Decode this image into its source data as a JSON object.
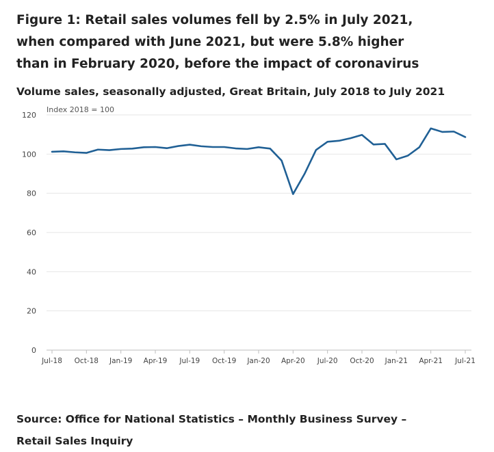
{
  "title": "Figure 1: Retail sales volumes fell by 2.5% in July 2021, when compared with June 2021, but were 5.8% higher than in February 2020, before the impact of coronavirus",
  "subtitle": "Volume sales, seasonally adjusted, Great Britain, July 2018 to July 2021",
  "source": "Source: Office for National Statistics – Monthly Business Survey – Retail Sales Inquiry",
  "colors": {
    "line": "#206095",
    "grid": "#e6e6e6",
    "axis": "#bebebe"
  },
  "chart_data": {
    "type": "line",
    "ylabel": "Index 2018 = 100",
    "ylim": [
      0,
      120
    ],
    "yticks": [
      0,
      20,
      40,
      60,
      80,
      100,
      120
    ],
    "x": [
      "Jul-18",
      "Aug-18",
      "Sep-18",
      "Oct-18",
      "Nov-18",
      "Dec-18",
      "Jan-19",
      "Feb-19",
      "Mar-19",
      "Apr-19",
      "May-19",
      "Jun-19",
      "Jul-19",
      "Aug-19",
      "Sep-19",
      "Oct-19",
      "Nov-19",
      "Dec-19",
      "Jan-20",
      "Feb-20",
      "Mar-20",
      "Apr-20",
      "May-20",
      "Jun-20",
      "Jul-20",
      "Aug-20",
      "Sep-20",
      "Oct-20",
      "Nov-20",
      "Dec-20",
      "Jan-21",
      "Feb-21",
      "Mar-21",
      "Apr-21",
      "May-21",
      "Jun-21",
      "Jul-21"
    ],
    "xticks": [
      "Jul-18",
      "Oct-18",
      "Jan-19",
      "Apr-19",
      "Jul-19",
      "Oct-19",
      "Jan-20",
      "Apr-20",
      "Jul-20",
      "Oct-20",
      "Jan-21",
      "Apr-21",
      "Jul-21"
    ],
    "series": [
      {
        "name": "Volume sales",
        "values": [
          101.2,
          101.4,
          100.9,
          100.6,
          102.3,
          102.0,
          102.6,
          102.8,
          103.5,
          103.6,
          103.0,
          104.1,
          104.8,
          104.0,
          103.6,
          103.6,
          102.9,
          102.6,
          103.5,
          102.8,
          96.7,
          79.6,
          89.9,
          102.1,
          106.3,
          106.8,
          108.1,
          109.8,
          104.9,
          105.2,
          97.3,
          99.2,
          103.5,
          113.1,
          111.3,
          111.5,
          108.7
        ]
      }
    ]
  }
}
